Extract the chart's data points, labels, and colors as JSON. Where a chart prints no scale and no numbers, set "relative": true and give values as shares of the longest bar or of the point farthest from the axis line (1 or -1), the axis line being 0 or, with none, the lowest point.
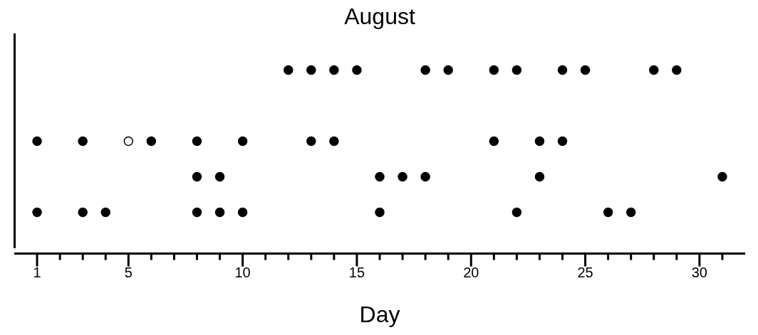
{
  "chart_data": {
    "type": "scatter",
    "title": "August",
    "xlabel": "Day",
    "relative": true,
    "marker": "circle",
    "grid": false,
    "xlim": [
      0,
      32
    ],
    "xticks": [
      1,
      {
        "value": 2,
        "label": null
      },
      {
        "value": 3,
        "label": null
      },
      {
        "value": 4,
        "label": null
      },
      5,
      {
        "value": 6,
        "label": null
      },
      {
        "value": 7,
        "label": null
      },
      {
        "value": 8,
        "label": null
      },
      {
        "value": 9,
        "label": null
      },
      10,
      {
        "value": 11,
        "label": null
      },
      {
        "value": 12,
        "label": null
      },
      {
        "value": 13,
        "label": null
      },
      {
        "value": 14,
        "label": null
      },
      15,
      {
        "value": 16,
        "label": null
      },
      {
        "value": 17,
        "label": null
      },
      {
        "value": 18,
        "label": null
      },
      {
        "value": 19,
        "label": null
      },
      20,
      {
        "value": 21,
        "label": null
      },
      {
        "value": 22,
        "label": null
      },
      {
        "value": 23,
        "label": null
      },
      {
        "value": 24,
        "label": null
      },
      25,
      {
        "value": 26,
        "label": null
      },
      {
        "value": 27,
        "label": null
      },
      {
        "value": 28,
        "label": null
      },
      {
        "value": 29,
        "label": null
      },
      30,
      {
        "value": 31,
        "label": null
      }
    ],
    "series": [
      {
        "color": "#000000",
        "x": [
          12,
          13,
          14,
          15,
          18,
          19,
          21,
          22,
          24,
          25,
          28,
          29,
          1,
          3,
          6,
          8,
          10,
          13,
          14,
          21,
          23,
          24,
          8,
          9,
          16,
          17,
          18,
          23,
          31,
          1,
          3,
          4,
          8,
          9,
          10,
          16,
          22,
          26,
          27
        ],
        "values": [
          1,
          1,
          1,
          1,
          1,
          1,
          1,
          1,
          1,
          1,
          1,
          1,
          0.6,
          0.6,
          0.6,
          0.6,
          0.6,
          0.6,
          0.6,
          0.6,
          0.6,
          0.6,
          0.4,
          0.4,
          0.4,
          0.4,
          0.4,
          0.4,
          0.4,
          0.2,
          0.2,
          0.2,
          0.2,
          0.2,
          0.2,
          0.2,
          0.2,
          0.2,
          0.2
        ]
      },
      {
        "color": "#000000",
        "colors": [
          "#ffffff"
        ],
        "x": [
          5
        ],
        "values": [
          0.6
        ]
      }
    ]
  }
}
